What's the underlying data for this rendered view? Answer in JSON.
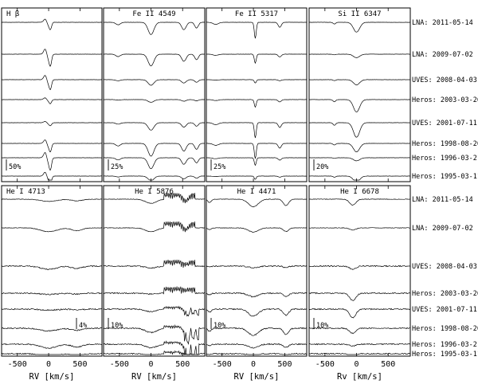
{
  "chart_data": {
    "type": "line",
    "xlabel": "RV [km/s]",
    "xlabel_bottom_right": "Rv [km/s]",
    "xlim": [
      -750,
      850
    ],
    "xticks": [
      -500,
      0,
      500
    ],
    "top_row": {
      "dates": [
        "LNA: 2011-05-14",
        "LNA: 2009-07-02",
        "UVES: 2008-04-03",
        "Heros: 2003-03-26",
        "UVES: 2001-07-11",
        "Heros: 1998-08-20",
        "Heros: 1996-03-21",
        "Heros: 1995-03-11"
      ],
      "panels": [
        {
          "title": "H β",
          "scale": "50%",
          "features": [
            {
              "center": 0,
              "width": 40,
              "depth": 0.35,
              "emission": 0.35
            },
            {
              "center": 30,
              "width": 25,
              "depth": 0.5,
              "emission": 0.0
            }
          ]
        },
        {
          "title": "Fe II 4549",
          "scale": "25%",
          "features": [
            {
              "center": -520,
              "width": 50,
              "depth": 0.15
            },
            {
              "center": 0,
              "width": 65,
              "depth": 0.75
            },
            {
              "center": 520,
              "width": 50,
              "depth": 0.45
            },
            {
              "center": 720,
              "width": 40,
              "depth": 0.35
            }
          ]
        },
        {
          "title": "Fe II 5317",
          "scale": "25%",
          "features": [
            {
              "center": -600,
              "width": 60,
              "depth": 0.12
            },
            {
              "center": 30,
              "width": 22,
              "depth": 0.95
            },
            {
              "center": 420,
              "width": 35,
              "depth": 0.3
            }
          ]
        },
        {
          "title": "Si II 6347",
          "scale": "20%",
          "features": [
            {
              "center": -350,
              "width": 30,
              "depth": 0.15
            },
            {
              "center": 0,
              "width": 70,
              "depth": 0.85
            }
          ]
        }
      ]
    },
    "bottom_row": {
      "dates": [
        "LNA: 2011-05-14",
        "LNA: 2009-07-02",
        "UVES: 2008-04-03",
        "Heros: 2003-03-26",
        "UVES: 2001-07-11",
        "Heros: 1998-08-20",
        "Heros: 1996-03-21",
        "Heros: 1995-03-11"
      ],
      "panels": [
        {
          "title": "He I 4713",
          "scale": "4%",
          "features": [
            {
              "center": 0,
              "width": 180,
              "depth": 0.35
            },
            {
              "center": 450,
              "width": 120,
              "depth": 0.25
            }
          ]
        },
        {
          "title": "He I 5876",
          "scale": "10%",
          "features": [
            {
              "center": 0,
              "width": 120,
              "depth": 0.4
            },
            {
              "center": 550,
              "width": 60,
              "depth": 0.6
            }
          ]
        },
        {
          "title": "He I 4471",
          "scale": "10%",
          "features": [
            {
              "center": -700,
              "width": 40,
              "depth": 0.3
            },
            {
              "center": 0,
              "width": 110,
              "depth": 0.7
            },
            {
              "center": 520,
              "width": 60,
              "depth": 0.6
            }
          ]
        },
        {
          "title": "He I 6678",
          "scale": "10%",
          "features": [
            {
              "center": -60,
              "width": 70,
              "depth": 0.8
            }
          ]
        }
      ]
    }
  }
}
